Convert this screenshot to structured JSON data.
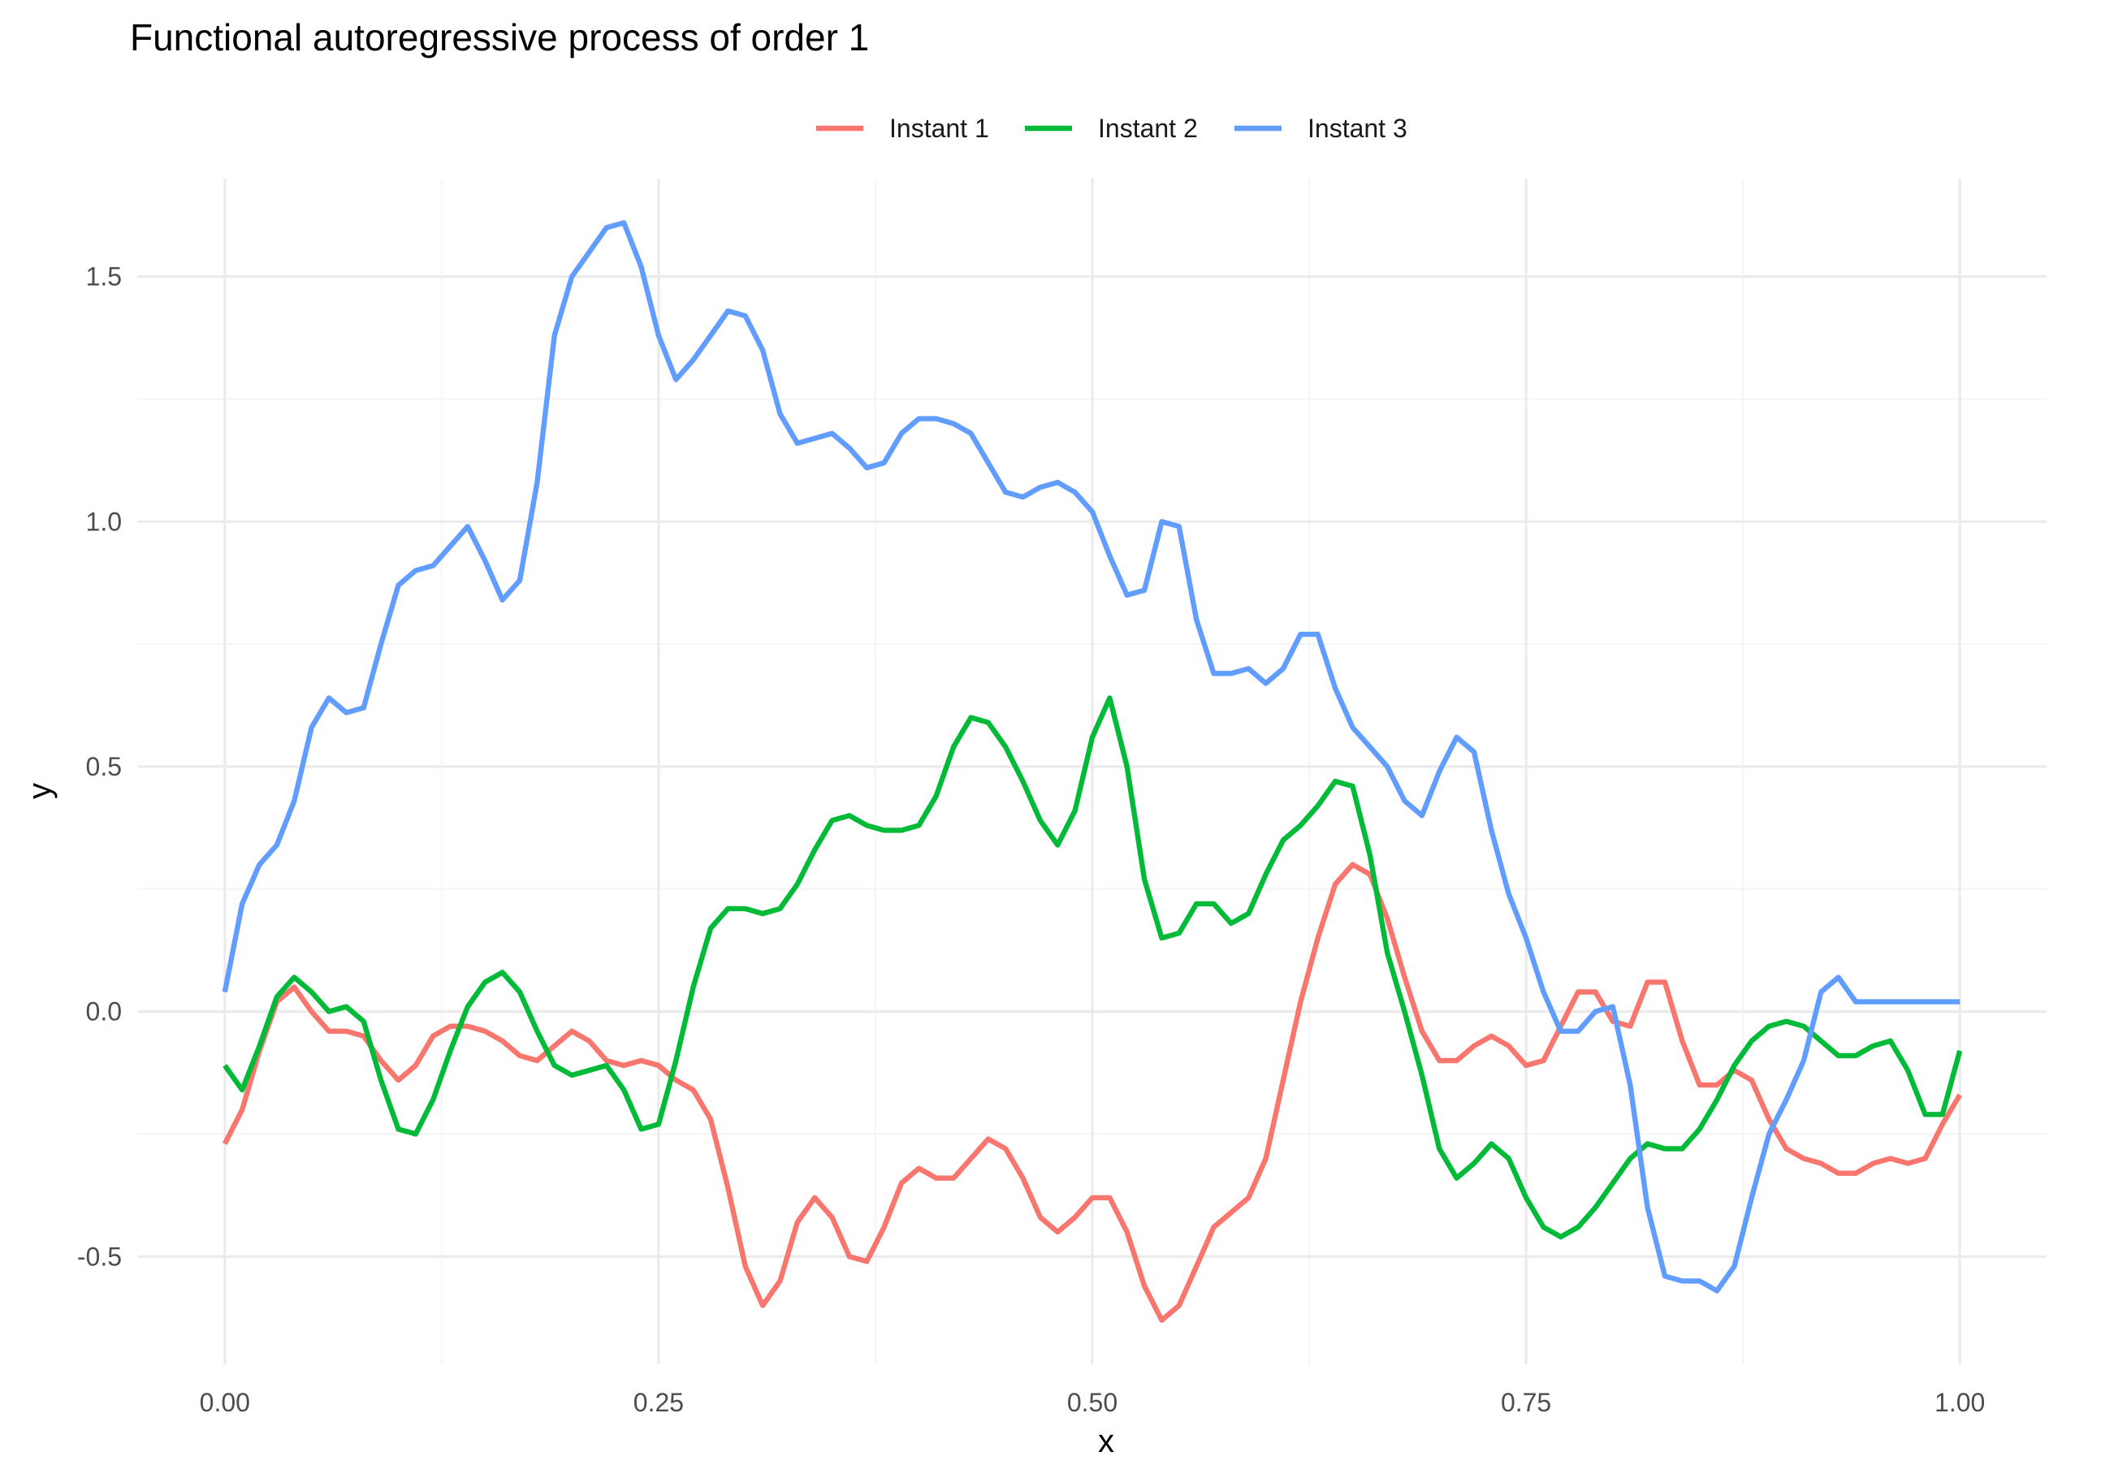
{
  "chart_data": {
    "type": "line",
    "title": "Functional autoregressive process of order 1",
    "xlabel": "x",
    "ylabel": "y",
    "xlim": [
      -0.05,
      1.05
    ],
    "ylim": [
      -0.72,
      1.7
    ],
    "x_ticks": [
      0.0,
      0.25,
      0.5,
      0.75,
      1.0
    ],
    "x_tick_labels": [
      "0.00",
      "0.25",
      "0.50",
      "0.75",
      "1.00"
    ],
    "y_ticks": [
      -0.5,
      0.0,
      0.5,
      1.0,
      1.5
    ],
    "y_tick_labels": [
      "-0.5",
      "0.0",
      "0.5",
      "1.0",
      "1.5"
    ],
    "grid": true,
    "legend_position": "top",
    "series": [
      {
        "name": "Instant 1",
        "color": "#F8766D",
        "x": [
          0.0,
          0.01,
          0.02,
          0.03,
          0.04,
          0.05,
          0.06,
          0.07,
          0.08,
          0.09,
          0.1,
          0.11,
          0.12,
          0.13,
          0.14,
          0.15,
          0.16,
          0.17,
          0.18,
          0.19,
          0.2,
          0.21,
          0.22,
          0.23,
          0.24,
          0.25,
          0.26,
          0.27,
          0.28,
          0.29,
          0.3,
          0.31,
          0.32,
          0.33,
          0.34,
          0.35,
          0.36,
          0.37,
          0.38,
          0.39,
          0.4,
          0.41,
          0.42,
          0.43,
          0.44,
          0.45,
          0.46,
          0.47,
          0.48,
          0.49,
          0.5,
          0.51,
          0.52,
          0.53,
          0.54,
          0.55,
          0.56,
          0.57,
          0.58,
          0.59,
          0.6,
          0.61,
          0.62,
          0.63,
          0.64,
          0.65,
          0.66,
          0.67,
          0.68,
          0.69,
          0.7,
          0.71,
          0.72,
          0.73,
          0.74,
          0.75,
          0.76,
          0.77,
          0.78,
          0.79,
          0.8,
          0.81,
          0.82,
          0.83,
          0.84,
          0.85,
          0.86,
          0.87,
          0.88,
          0.89,
          0.9,
          0.91,
          0.92,
          0.93,
          0.94,
          0.95,
          0.96,
          0.97,
          0.98,
          0.99,
          1.0
        ],
        "values": [
          -0.27,
          -0.2,
          -0.08,
          0.02,
          0.05,
          0.0,
          -0.04,
          -0.04,
          -0.05,
          -0.1,
          -0.14,
          -0.11,
          -0.05,
          -0.03,
          -0.03,
          -0.04,
          -0.06,
          -0.09,
          -0.1,
          -0.07,
          -0.04,
          -0.06,
          -0.1,
          -0.11,
          -0.1,
          -0.11,
          -0.14,
          -0.16,
          -0.22,
          -0.36,
          -0.52,
          -0.6,
          -0.55,
          -0.43,
          -0.38,
          -0.42,
          -0.5,
          -0.51,
          -0.44,
          -0.35,
          -0.32,
          -0.34,
          -0.34,
          -0.3,
          -0.26,
          -0.28,
          -0.34,
          -0.42,
          -0.45,
          -0.42,
          -0.38,
          -0.38,
          -0.45,
          -0.56,
          -0.63,
          -0.6,
          -0.52,
          -0.44,
          -0.41,
          -0.38,
          -0.3,
          -0.14,
          0.02,
          0.15,
          0.26,
          0.3,
          0.28,
          0.19,
          0.07,
          -0.04,
          -0.1,
          -0.1,
          -0.07,
          -0.05,
          -0.07,
          -0.11,
          -0.1,
          -0.03,
          0.04,
          0.04,
          -0.02,
          -0.03,
          0.06,
          0.06,
          -0.06,
          -0.15,
          -0.15,
          -0.12,
          -0.14,
          -0.22,
          -0.28,
          -0.3,
          -0.31,
          -0.33,
          -0.33,
          -0.31,
          -0.3,
          -0.31,
          -0.3,
          -0.23,
          -0.17
        ]
      },
      {
        "name": "Instant 2",
        "color": "#00BA38",
        "x": [
          0.0,
          0.01,
          0.02,
          0.03,
          0.04,
          0.05,
          0.06,
          0.07,
          0.08,
          0.09,
          0.1,
          0.11,
          0.12,
          0.13,
          0.14,
          0.15,
          0.16,
          0.17,
          0.18,
          0.19,
          0.2,
          0.21,
          0.22,
          0.23,
          0.24,
          0.25,
          0.26,
          0.27,
          0.28,
          0.29,
          0.3,
          0.31,
          0.32,
          0.33,
          0.34,
          0.35,
          0.36,
          0.37,
          0.38,
          0.39,
          0.4,
          0.41,
          0.42,
          0.43,
          0.44,
          0.45,
          0.46,
          0.47,
          0.48,
          0.49,
          0.5,
          0.51,
          0.52,
          0.53,
          0.54,
          0.55,
          0.56,
          0.57,
          0.58,
          0.59,
          0.6,
          0.61,
          0.62,
          0.63,
          0.64,
          0.65,
          0.66,
          0.67,
          0.68,
          0.69,
          0.7,
          0.71,
          0.72,
          0.73,
          0.74,
          0.75,
          0.76,
          0.77,
          0.78,
          0.79,
          0.8,
          0.81,
          0.82,
          0.83,
          0.84,
          0.85,
          0.86,
          0.87,
          0.88,
          0.89,
          0.9,
          0.91,
          0.92,
          0.93,
          0.94,
          0.95,
          0.96,
          0.97,
          0.98,
          0.99,
          1.0
        ],
        "values": [
          -0.11,
          -0.16,
          -0.07,
          0.03,
          0.07,
          0.04,
          0.0,
          0.01,
          -0.02,
          -0.14,
          -0.24,
          -0.25,
          -0.18,
          -0.08,
          0.01,
          0.06,
          0.08,
          0.04,
          -0.04,
          -0.11,
          -0.13,
          -0.12,
          -0.11,
          -0.16,
          -0.24,
          -0.23,
          -0.1,
          0.05,
          0.17,
          0.21,
          0.21,
          0.2,
          0.21,
          0.26,
          0.33,
          0.39,
          0.4,
          0.38,
          0.37,
          0.37,
          0.38,
          0.44,
          0.54,
          0.6,
          0.59,
          0.54,
          0.47,
          0.39,
          0.34,
          0.41,
          0.56,
          0.64,
          0.5,
          0.27,
          0.15,
          0.16,
          0.22,
          0.22,
          0.18,
          0.2,
          0.28,
          0.35,
          0.38,
          0.42,
          0.47,
          0.46,
          0.32,
          0.12,
          0.0,
          -0.13,
          -0.28,
          -0.34,
          -0.31,
          -0.27,
          -0.3,
          -0.38,
          -0.44,
          -0.46,
          -0.44,
          -0.4,
          -0.35,
          -0.3,
          -0.27,
          -0.28,
          -0.28,
          -0.24,
          -0.18,
          -0.11,
          -0.06,
          -0.03,
          -0.02,
          -0.03,
          -0.06,
          -0.09,
          -0.09,
          -0.07,
          -0.06,
          -0.12,
          -0.21,
          -0.21,
          -0.08
        ]
      },
      {
        "name": "Instant 3",
        "color": "#619CFF",
        "x": [
          0.0,
          0.01,
          0.02,
          0.03,
          0.04,
          0.05,
          0.06,
          0.07,
          0.08,
          0.09,
          0.1,
          0.11,
          0.12,
          0.13,
          0.14,
          0.15,
          0.16,
          0.17,
          0.18,
          0.19,
          0.2,
          0.21,
          0.22,
          0.23,
          0.24,
          0.25,
          0.26,
          0.27,
          0.28,
          0.29,
          0.3,
          0.31,
          0.32,
          0.33,
          0.34,
          0.35,
          0.36,
          0.37,
          0.38,
          0.39,
          0.4,
          0.41,
          0.42,
          0.43,
          0.44,
          0.45,
          0.46,
          0.47,
          0.48,
          0.49,
          0.5,
          0.51,
          0.52,
          0.53,
          0.54,
          0.55,
          0.56,
          0.57,
          0.58,
          0.59,
          0.6,
          0.61,
          0.62,
          0.63,
          0.64,
          0.65,
          0.66,
          0.67,
          0.68,
          0.69,
          0.7,
          0.71,
          0.72,
          0.73,
          0.74,
          0.75,
          0.76,
          0.77,
          0.78,
          0.79,
          0.8,
          0.81,
          0.82,
          0.83,
          0.84,
          0.85,
          0.86,
          0.87,
          0.88,
          0.89,
          0.9,
          0.91,
          0.92,
          0.93,
          0.94,
          0.95,
          0.96,
          0.97,
          0.98,
          0.99,
          1.0
        ],
        "values": [
          0.04,
          0.22,
          0.3,
          0.34,
          0.43,
          0.58,
          0.64,
          0.61,
          0.62,
          0.75,
          0.87,
          0.9,
          0.91,
          0.95,
          0.99,
          0.92,
          0.84,
          0.88,
          1.08,
          1.38,
          1.5,
          1.55,
          1.6,
          1.61,
          1.52,
          1.38,
          1.29,
          1.33,
          1.38,
          1.43,
          1.42,
          1.35,
          1.22,
          1.16,
          1.17,
          1.18,
          1.15,
          1.11,
          1.12,
          1.18,
          1.21,
          1.21,
          1.2,
          1.18,
          1.12,
          1.06,
          1.05,
          1.07,
          1.08,
          1.06,
          1.02,
          0.93,
          0.85,
          0.86,
          1.0,
          0.99,
          0.8,
          0.69,
          0.69,
          0.7,
          0.67,
          0.7,
          0.77,
          0.77,
          0.66,
          0.58,
          0.54,
          0.5,
          0.43,
          0.4,
          0.49,
          0.56,
          0.53,
          0.37,
          0.24,
          0.15,
          0.04,
          -0.04,
          -0.04,
          0.0,
          0.01,
          -0.15,
          -0.4,
          -0.54,
          -0.55,
          -0.55,
          -0.57,
          -0.52,
          -0.38,
          -0.25,
          -0.18,
          -0.1,
          0.04,
          0.07,
          0.02,
          0.02,
          0.02,
          0.02,
          0.02,
          0.02,
          0.02
        ]
      }
    ]
  }
}
